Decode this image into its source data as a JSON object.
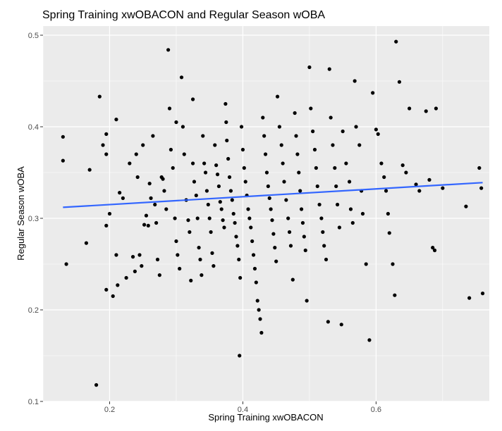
{
  "chart_data": {
    "type": "scatter",
    "title": "Spring Training xwOBACON and Regular Season wOBA",
    "xlabel": "Spring Training xwOBACON",
    "ylabel": "Regular Season wOBA",
    "xlim": [
      0.1,
      0.77
    ],
    "ylim": [
      0.1,
      0.51
    ],
    "xticks": [
      0.2,
      0.4,
      0.6
    ],
    "xtick_labels": [
      "0.2",
      "0.4",
      "0.6"
    ],
    "yticks": [
      0.1,
      0.2,
      0.3,
      0.4,
      0.5
    ],
    "ytick_labels": [
      "0.1",
      "0.2",
      "0.3",
      "0.4",
      "0.5"
    ],
    "grid": true,
    "theme": "ggplot2 gray",
    "panel_color": "#ebebeb",
    "point_color": "#000000",
    "trend_line": {
      "color": "#3366ff",
      "x": [
        0.13,
        0.76
      ],
      "y": [
        0.312,
        0.339
      ]
    },
    "points": [
      [
        0.13,
        0.389
      ],
      [
        0.13,
        0.363
      ],
      [
        0.135,
        0.25
      ],
      [
        0.165,
        0.273
      ],
      [
        0.17,
        0.353
      ],
      [
        0.18,
        0.118
      ],
      [
        0.185,
        0.433
      ],
      [
        0.19,
        0.38
      ],
      [
        0.195,
        0.392
      ],
      [
        0.195,
        0.37
      ],
      [
        0.195,
        0.292
      ],
      [
        0.195,
        0.222
      ],
      [
        0.2,
        0.305
      ],
      [
        0.205,
        0.215
      ],
      [
        0.21,
        0.408
      ],
      [
        0.21,
        0.26
      ],
      [
        0.212,
        0.227
      ],
      [
        0.215,
        0.328
      ],
      [
        0.22,
        0.322
      ],
      [
        0.225,
        0.235
      ],
      [
        0.23,
        0.36
      ],
      [
        0.235,
        0.258
      ],
      [
        0.238,
        0.242
      ],
      [
        0.24,
        0.37
      ],
      [
        0.242,
        0.345
      ],
      [
        0.245,
        0.26
      ],
      [
        0.248,
        0.248
      ],
      [
        0.25,
        0.38
      ],
      [
        0.252,
        0.293
      ],
      [
        0.255,
        0.303
      ],
      [
        0.258,
        0.292
      ],
      [
        0.26,
        0.338
      ],
      [
        0.262,
        0.322
      ],
      [
        0.265,
        0.39
      ],
      [
        0.268,
        0.315
      ],
      [
        0.27,
        0.295
      ],
      [
        0.272,
        0.255
      ],
      [
        0.275,
        0.238
      ],
      [
        0.278,
        0.345
      ],
      [
        0.28,
        0.343
      ],
      [
        0.282,
        0.33
      ],
      [
        0.285,
        0.31
      ],
      [
        0.288,
        0.484
      ],
      [
        0.29,
        0.42
      ],
      [
        0.292,
        0.375
      ],
      [
        0.295,
        0.355
      ],
      [
        0.298,
        0.3
      ],
      [
        0.3,
        0.405
      ],
      [
        0.3,
        0.275
      ],
      [
        0.302,
        0.26
      ],
      [
        0.305,
        0.245
      ],
      [
        0.308,
        0.454
      ],
      [
        0.31,
        0.4
      ],
      [
        0.312,
        0.37
      ],
      [
        0.315,
        0.32
      ],
      [
        0.318,
        0.298
      ],
      [
        0.32,
        0.285
      ],
      [
        0.322,
        0.232
      ],
      [
        0.325,
        0.43
      ],
      [
        0.325,
        0.36
      ],
      [
        0.327,
        0.34
      ],
      [
        0.33,
        0.325
      ],
      [
        0.332,
        0.3
      ],
      [
        0.334,
        0.268
      ],
      [
        0.336,
        0.255
      ],
      [
        0.338,
        0.238
      ],
      [
        0.34,
        0.39
      ],
      [
        0.342,
        0.36
      ],
      [
        0.344,
        0.35
      ],
      [
        0.346,
        0.33
      ],
      [
        0.348,
        0.315
      ],
      [
        0.35,
        0.3
      ],
      [
        0.352,
        0.285
      ],
      [
        0.354,
        0.262
      ],
      [
        0.356,
        0.248
      ],
      [
        0.358,
        0.38
      ],
      [
        0.36,
        0.358
      ],
      [
        0.362,
        0.348
      ],
      [
        0.364,
        0.335
      ],
      [
        0.366,
        0.318
      ],
      [
        0.368,
        0.31
      ],
      [
        0.37,
        0.298
      ],
      [
        0.372,
        0.29
      ],
      [
        0.374,
        0.425
      ],
      [
        0.375,
        0.405
      ],
      [
        0.376,
        0.385
      ],
      [
        0.378,
        0.365
      ],
      [
        0.38,
        0.345
      ],
      [
        0.382,
        0.33
      ],
      [
        0.384,
        0.32
      ],
      [
        0.386,
        0.305
      ],
      [
        0.388,
        0.295
      ],
      [
        0.39,
        0.28
      ],
      [
        0.392,
        0.27
      ],
      [
        0.394,
        0.255
      ],
      [
        0.395,
        0.15
      ],
      [
        0.396,
        0.235
      ],
      [
        0.398,
        0.4
      ],
      [
        0.4,
        0.375
      ],
      [
        0.402,
        0.355
      ],
      [
        0.404,
        0.34
      ],
      [
        0.406,
        0.325
      ],
      [
        0.408,
        0.31
      ],
      [
        0.41,
        0.3
      ],
      [
        0.412,
        0.29
      ],
      [
        0.414,
        0.275
      ],
      [
        0.416,
        0.26
      ],
      [
        0.418,
        0.245
      ],
      [
        0.42,
        0.23
      ],
      [
        0.422,
        0.21
      ],
      [
        0.424,
        0.2
      ],
      [
        0.426,
        0.19
      ],
      [
        0.428,
        0.175
      ],
      [
        0.43,
        0.41
      ],
      [
        0.432,
        0.39
      ],
      [
        0.434,
        0.37
      ],
      [
        0.436,
        0.35
      ],
      [
        0.438,
        0.335
      ],
      [
        0.44,
        0.322
      ],
      [
        0.442,
        0.31
      ],
      [
        0.444,
        0.298
      ],
      [
        0.446,
        0.283
      ],
      [
        0.448,
        0.268
      ],
      [
        0.45,
        0.253
      ],
      [
        0.452,
        0.433
      ],
      [
        0.455,
        0.4
      ],
      [
        0.458,
        0.38
      ],
      [
        0.46,
        0.36
      ],
      [
        0.462,
        0.34
      ],
      [
        0.465,
        0.32
      ],
      [
        0.468,
        0.3
      ],
      [
        0.47,
        0.285
      ],
      [
        0.472,
        0.27
      ],
      [
        0.475,
        0.233
      ],
      [
        0.478,
        0.415
      ],
      [
        0.48,
        0.39
      ],
      [
        0.482,
        0.37
      ],
      [
        0.484,
        0.35
      ],
      [
        0.486,
        0.33
      ],
      [
        0.488,
        0.31
      ],
      [
        0.49,
        0.295
      ],
      [
        0.492,
        0.28
      ],
      [
        0.494,
        0.265
      ],
      [
        0.496,
        0.21
      ],
      [
        0.5,
        0.465
      ],
      [
        0.502,
        0.42
      ],
      [
        0.505,
        0.395
      ],
      [
        0.508,
        0.375
      ],
      [
        0.51,
        0.355
      ],
      [
        0.512,
        0.335
      ],
      [
        0.515,
        0.315
      ],
      [
        0.518,
        0.3
      ],
      [
        0.52,
        0.285
      ],
      [
        0.522,
        0.27
      ],
      [
        0.525,
        0.255
      ],
      [
        0.528,
        0.187
      ],
      [
        0.53,
        0.463
      ],
      [
        0.532,
        0.41
      ],
      [
        0.535,
        0.38
      ],
      [
        0.538,
        0.355
      ],
      [
        0.54,
        0.335
      ],
      [
        0.542,
        0.315
      ],
      [
        0.545,
        0.29
      ],
      [
        0.548,
        0.184
      ],
      [
        0.55,
        0.395
      ],
      [
        0.555,
        0.36
      ],
      [
        0.56,
        0.34
      ],
      [
        0.562,
        0.31
      ],
      [
        0.565,
        0.295
      ],
      [
        0.568,
        0.45
      ],
      [
        0.57,
        0.4
      ],
      [
        0.575,
        0.38
      ],
      [
        0.578,
        0.33
      ],
      [
        0.58,
        0.305
      ],
      [
        0.585,
        0.25
      ],
      [
        0.59,
        0.167
      ],
      [
        0.595,
        0.437
      ],
      [
        0.6,
        0.397
      ],
      [
        0.603,
        0.392
      ],
      [
        0.608,
        0.36
      ],
      [
        0.612,
        0.345
      ],
      [
        0.615,
        0.33
      ],
      [
        0.618,
        0.305
      ],
      [
        0.62,
        0.284
      ],
      [
        0.625,
        0.25
      ],
      [
        0.628,
        0.216
      ],
      [
        0.63,
        0.493
      ],
      [
        0.635,
        0.449
      ],
      [
        0.64,
        0.358
      ],
      [
        0.645,
        0.35
      ],
      [
        0.65,
        0.42
      ],
      [
        0.66,
        0.337
      ],
      [
        0.665,
        0.33
      ],
      [
        0.675,
        0.417
      ],
      [
        0.68,
        0.342
      ],
      [
        0.685,
        0.268
      ],
      [
        0.688,
        0.265
      ],
      [
        0.69,
        0.42
      ],
      [
        0.7,
        0.333
      ],
      [
        0.735,
        0.313
      ],
      [
        0.74,
        0.213
      ],
      [
        0.755,
        0.355
      ],
      [
        0.758,
        0.333
      ],
      [
        0.76,
        0.218
      ]
    ]
  }
}
